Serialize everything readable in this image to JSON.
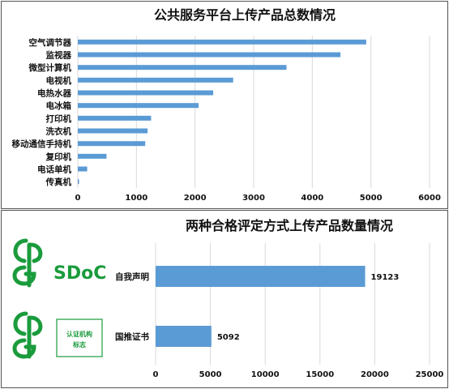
{
  "chart_data": [
    {
      "type": "bar",
      "orientation": "horizontal",
      "title": "公共服务平台上传产品总数情况",
      "categories": [
        "空气调节器",
        "监视器",
        "微型计算机",
        "电视机",
        "电热水器",
        "电冰箱",
        "打印机",
        "洗衣机",
        "移动通信手持机",
        "复印机",
        "电话单机",
        "传真机"
      ],
      "values": [
        4920,
        4480,
        3560,
        2650,
        2310,
        2060,
        1250,
        1190,
        1150,
        490,
        160,
        20
      ],
      "xlim": [
        0,
        6000
      ],
      "xticks": [
        "0",
        "1000",
        "2000",
        "3000",
        "4000",
        "5000",
        "6000"
      ],
      "grid": true,
      "legend": "none"
    },
    {
      "type": "bar",
      "orientation": "horizontal",
      "title": "两种合格评定方式上传产品数量情况",
      "categories": [
        "自我声明",
        "国推证书"
      ],
      "values": [
        19123,
        5092
      ],
      "data_labels": [
        "19123",
        "5092"
      ],
      "xlim": [
        0,
        25000
      ],
      "xticks": [
        "0",
        "5000",
        "10000",
        "15000",
        "20000",
        "25000"
      ],
      "grid": true,
      "legend": "none"
    }
  ],
  "logos": [
    {
      "name": "sdoc-logo",
      "text": "SDoC",
      "color": "#1a9b3c"
    },
    {
      "name": "certification-logo",
      "text_line1": "认证机构",
      "text_line2": "标志",
      "color": "#1a9b3c"
    }
  ]
}
